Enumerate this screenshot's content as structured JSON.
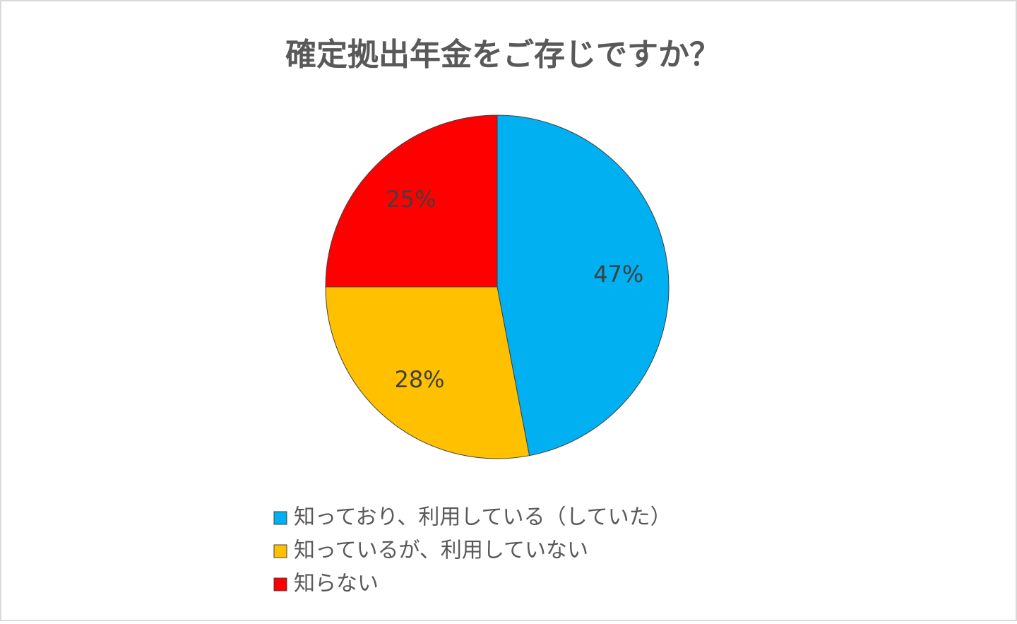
{
  "chart_data": {
    "type": "pie",
    "title": "確定拠出年金をご存じですか？",
    "categories": [
      "知っており、利用している（していた）",
      "知っているが、利用していない",
      "知らない"
    ],
    "values": [
      47,
      28,
      25
    ],
    "value_labels": [
      "47%",
      "28%",
      "25%"
    ],
    "colors": [
      "#00b0f0",
      "#ffc000",
      "#ff0000"
    ]
  }
}
